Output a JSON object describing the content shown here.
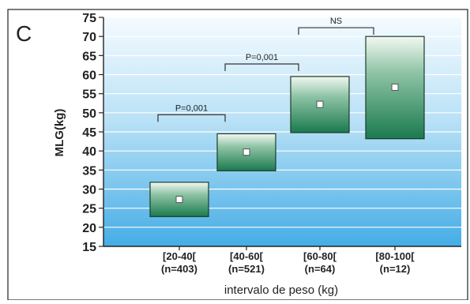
{
  "panel_label": "C",
  "chart_data": {
    "type": "box",
    "ylabel": "MLG(kg)",
    "xlabel": "intervalo de peso (kg)",
    "ylim": [
      15,
      75
    ],
    "yticks": [
      15,
      20,
      25,
      30,
      35,
      40,
      45,
      50,
      55,
      60,
      65,
      70,
      75
    ],
    "grid": "horizontal",
    "categories": [
      {
        "line1": "[20-40[",
        "line2": "(n=403)"
      },
      {
        "line1": "[40-60[",
        "line2": "(n=521)"
      },
      {
        "line1": "[60-80[",
        "line2": "(n=64)"
      },
      {
        "line1": "[80-100[",
        "line2": "(n=12)"
      }
    ],
    "boxes": [
      {
        "low": 22.8,
        "high": 31.8,
        "mean": 27.3
      },
      {
        "low": 34.8,
        "high": 44.5,
        "mean": 39.7
      },
      {
        "low": 44.8,
        "high": 59.5,
        "mean": 52.2
      },
      {
        "low": 43.2,
        "high": 70.0,
        "mean": 56.7
      }
    ],
    "comparisons": [
      {
        "from": 0,
        "to": 1,
        "y": 49.5,
        "label": "P=0,001"
      },
      {
        "from": 1,
        "to": 2,
        "y": 62.8,
        "label": "P=0,001"
      },
      {
        "from": 2,
        "to": 3,
        "y": 72.3,
        "label": "NS"
      }
    ],
    "colors": {
      "background_top": "#f4fbff",
      "background_bottom": "#45ade6",
      "box_top": "#f2f8f2",
      "box_bottom": "#1a7a4e",
      "box_stroke": "#1e3a2a"
    }
  }
}
